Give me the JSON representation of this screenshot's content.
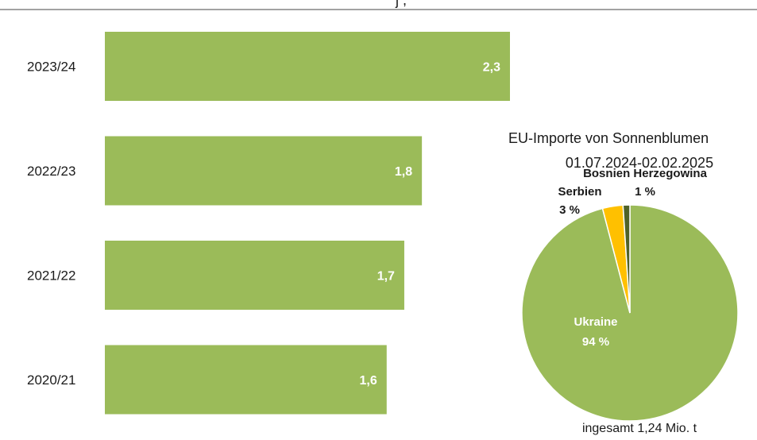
{
  "top_text": "j  ,",
  "chart_data": [
    {
      "type": "bar",
      "orientation": "horizontal",
      "categories": [
        "2023/24",
        "2022/23",
        "2021/22",
        "2020/21"
      ],
      "values": [
        2.3,
        1.8,
        1.7,
        1.6
      ],
      "value_labels": [
        "2,3",
        "1,8",
        "1,7",
        "1,6"
      ],
      "xlim": [
        0,
        2.3
      ],
      "grid": false,
      "colors": {
        "bar": "#9bbb59",
        "value_label": "#ffffff"
      }
    },
    {
      "type": "pie",
      "title": "EU-Importe von Sonnenblumen",
      "subtitle": "01.07.2024-02.02.2025",
      "slices": [
        {
          "name": "Ukraine",
          "value": 94,
          "label": "Ukraine",
          "pct_label": "94 %",
          "color": "#9bbb59"
        },
        {
          "name": "Serbien",
          "value": 3,
          "label": "Serbien",
          "pct_label": "3 %",
          "color": "#ffc000"
        },
        {
          "name": "Bosnien Herzegowina",
          "value": 1,
          "label": "Bosnien Herzegowina",
          "pct_label": "1 %",
          "color": "#4f6228"
        }
      ],
      "total_label": "ingesamt 1,24 Mio. t"
    }
  ]
}
